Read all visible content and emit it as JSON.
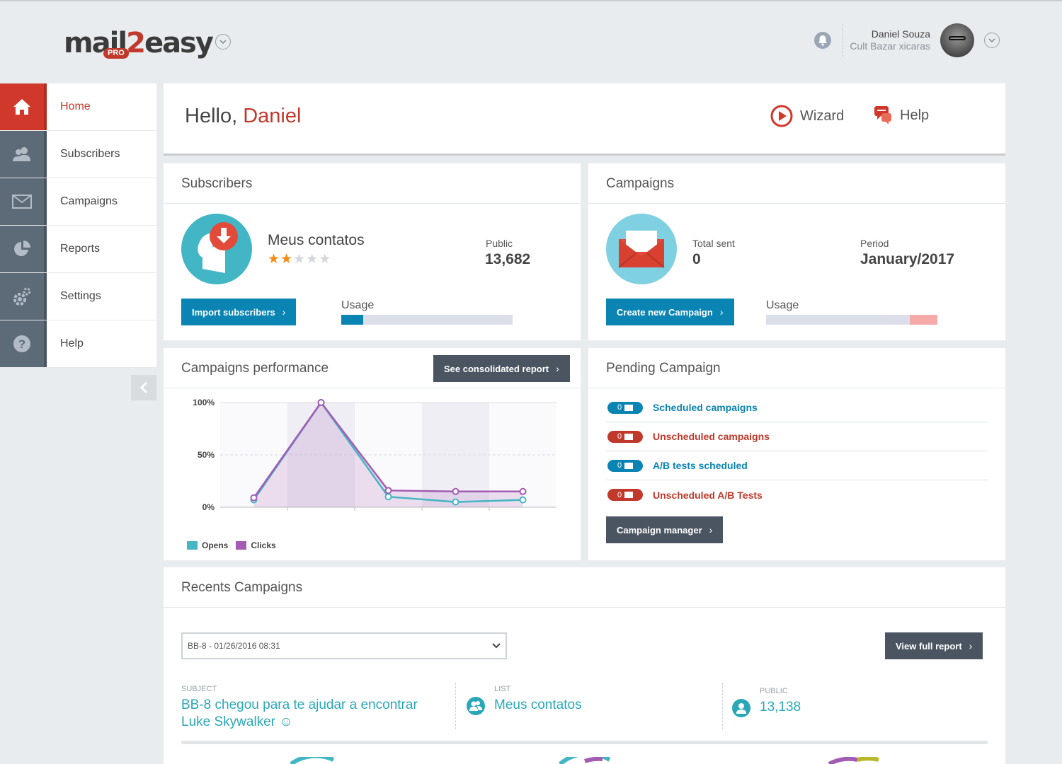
{
  "brand": {
    "logo_main": "mail",
    "logo_num": "2",
    "logo_end": "easy",
    "logo_badge": "PRO"
  },
  "user": {
    "name": "Daniel Souza",
    "company": "Cult Bazar xicaras"
  },
  "sidebar": {
    "items": [
      {
        "label": "Home",
        "icon": "home-icon",
        "active": true
      },
      {
        "label": "Subscribers",
        "icon": "users-icon"
      },
      {
        "label": "Campaigns",
        "icon": "envelope-icon"
      },
      {
        "label": "Reports",
        "icon": "pie-chart-icon"
      },
      {
        "label": "Settings",
        "icon": "gear-icon"
      },
      {
        "label": "Help",
        "icon": "question-icon"
      }
    ]
  },
  "header": {
    "greeting": "Hello,",
    "name": "Daniel",
    "wizard": "Wizard",
    "help": "Help"
  },
  "subscribers": {
    "title": "Subscribers",
    "list_name": "Meus contatos",
    "rating": 2,
    "rating_max": 5,
    "public_label": "Public",
    "public_value": "13,682",
    "import_button": "Import subscribers",
    "usage_label": "Usage",
    "usage_fraction": 0.13
  },
  "campaigns": {
    "title": "Campaigns",
    "total_label": "Total sent",
    "total_value": "0",
    "period_label": "Period",
    "period_value": "January/2017",
    "create_button": "Create new Campaign",
    "usage_label": "Usage",
    "usage_fraction": 0.84,
    "usage_overflow": 0.16
  },
  "performance": {
    "title": "Campaigns performance",
    "report_button": "See consolidated report",
    "legend_opens": "Opens",
    "legend_clicks": "Clicks"
  },
  "chart_data": {
    "type": "line",
    "yticks": [
      "100%",
      "50%",
      "0%"
    ],
    "ylim": [
      0,
      100
    ],
    "x": [
      1,
      2,
      3,
      4,
      5
    ],
    "series": [
      {
        "name": "Opens",
        "color": "#45b5c4",
        "values": [
          7,
          100,
          10,
          5,
          7
        ]
      },
      {
        "name": "Clicks",
        "color": "#a45bb4",
        "values": [
          9,
          100,
          16,
          15,
          15
        ]
      }
    ],
    "grid": true,
    "legend": "bottom-left"
  },
  "pending": {
    "title": "Pending Campaign",
    "rows": [
      {
        "count": "0",
        "label": "Scheduled campaigns",
        "color": "#0a84b3"
      },
      {
        "count": "0",
        "label": "Unscheduled campaigns",
        "color": "#c0392b"
      },
      {
        "count": "0",
        "label": "A/B tests scheduled",
        "color": "#0a84b3"
      },
      {
        "count": "0",
        "label": "Unscheduled A/B Tests",
        "color": "#c0392b"
      }
    ],
    "manager_button": "Campaign manager"
  },
  "recents": {
    "title": "Recents Campaigns",
    "selected": "BB-8 - 01/26/2016 08:31",
    "view_button": "View full report",
    "subject_label": "SUBJECT",
    "subject_line1": "BB-8 chegou para te ajudar a encontrar",
    "subject_line2": "Luke Skywalker ☺",
    "list_label": "LIST",
    "list_value": "Meus contatos",
    "public_label": "PUBLIC",
    "public_value": "13,138"
  }
}
